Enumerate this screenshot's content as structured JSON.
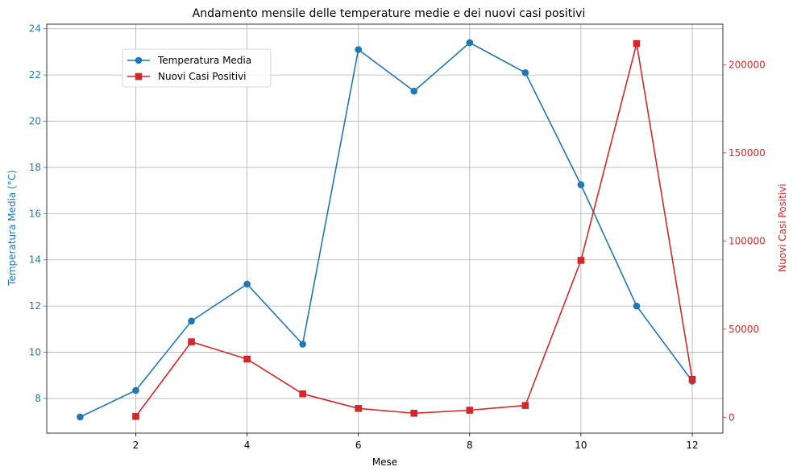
{
  "chart_data": {
    "type": "line",
    "title": "Andamento mensile delle temperature medie e dei nuovi casi positivi",
    "xlabel": "Mese",
    "ylabel_left": "Temperatura Media (°C)",
    "ylabel_right": "Nuovi Casi Positivi",
    "xlim": [
      0.4,
      12.55
    ],
    "ylim_left": [
      6.5,
      24.2
    ],
    "ylim_right": [
      -9000,
      223000
    ],
    "x_ticks": [
      2,
      4,
      6,
      8,
      10,
      12
    ],
    "y_ticks_left": [
      8,
      10,
      12,
      14,
      16,
      18,
      20,
      22,
      24
    ],
    "y_ticks_right": [
      0,
      50000,
      100000,
      150000,
      200000
    ],
    "grid": true,
    "legend_position": "top-left",
    "series": [
      {
        "name": "Temperatura Media",
        "axis": "left",
        "color": "#1f77b4",
        "marker": "circle",
        "x": [
          1,
          2,
          3,
          4,
          5,
          6,
          7,
          8,
          9,
          10,
          11,
          12
        ],
        "values": [
          7.2,
          8.35,
          11.35,
          12.95,
          10.35,
          23.1,
          21.3,
          23.4,
          22.1,
          17.25,
          12.0,
          8.75
        ]
      },
      {
        "name": "Nuovi Casi Positivi",
        "axis": "right",
        "color": "#d62728",
        "marker": "square",
        "x": [
          2,
          3,
          4,
          5,
          6,
          7,
          8,
          9,
          10,
          11,
          12
        ],
        "values": [
          500,
          42800,
          33000,
          13300,
          5000,
          2300,
          4000,
          6700,
          89000,
          212000,
          21500
        ]
      }
    ]
  }
}
